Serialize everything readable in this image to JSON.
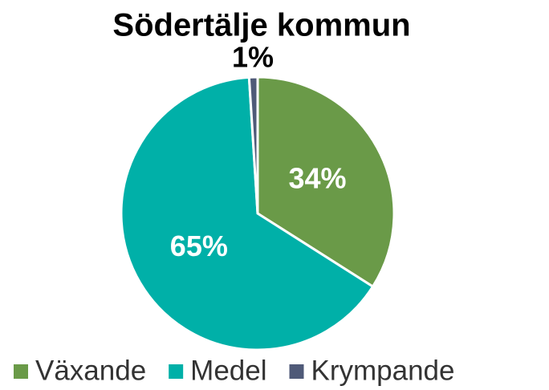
{
  "chart_data": {
    "type": "pie",
    "title": "Södertälje kommun",
    "categories": [
      "Växande",
      "Medel",
      "Krympande"
    ],
    "values": [
      34,
      65,
      1
    ],
    "value_labels": [
      "34%",
      "65%",
      "1%"
    ],
    "colors": [
      "#6a9a48",
      "#00b0a8",
      "#4f5a78"
    ],
    "legend": "bottom"
  }
}
